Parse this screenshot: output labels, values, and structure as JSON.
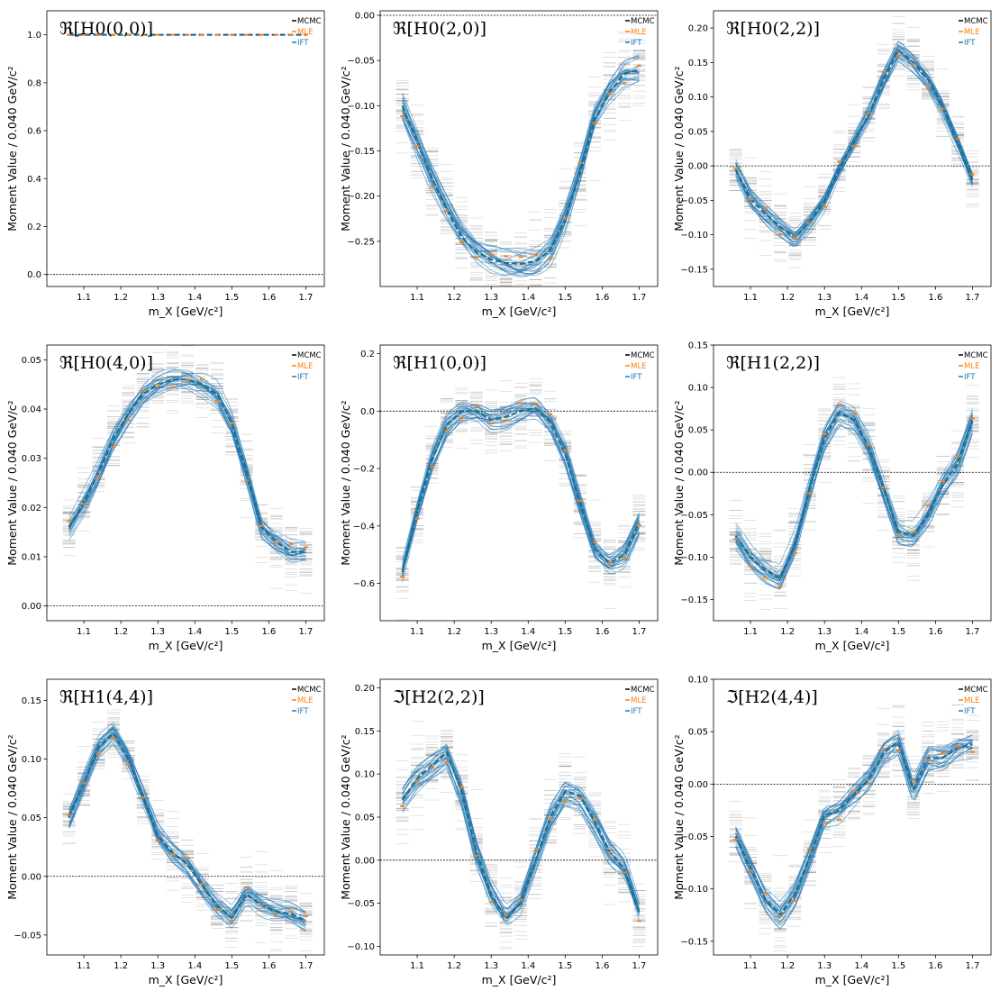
{
  "figure": {
    "legend": [
      {
        "label": "MCMC",
        "color": "#000000"
      },
      {
        "label": "MLE",
        "color": "#ff7f0e"
      },
      {
        "label": "IFT",
        "color": "#1f77b4"
      }
    ],
    "colors": {
      "mcmc": "#000000",
      "mle": "#ff7f0e",
      "ift": "#1f77b4",
      "ift_mean": "#1f6f8b",
      "zero_line": "#000000"
    },
    "xlabel": "m_X [GeV/c²]",
    "ylabel": "Moment Value / 0.040 GeV/c²"
  },
  "chart_data": [
    {
      "type": "line",
      "title": "ℜ[H0(0,0)]",
      "xlabel": "m_X [GeV/c²]",
      "ylabel": "Moment Value / 0.040 GeV/c²",
      "xlim": [
        1.0,
        1.75
      ],
      "ylim": [
        -0.05,
        1.1
      ],
      "xticks": [
        1.1,
        1.2,
        1.3,
        1.4,
        1.5,
        1.6,
        1.7
      ],
      "yticks": [
        0.0,
        0.2,
        0.4,
        0.6,
        0.8,
        1.0
      ],
      "ytick_labels": [
        "0.0",
        "0.2",
        "0.4",
        "0.6",
        "0.8",
        "1.0"
      ],
      "zero_line": true,
      "legend": "top-right",
      "x": [
        1.06,
        1.1,
        1.14,
        1.18,
        1.22,
        1.26,
        1.3,
        1.34,
        1.38,
        1.42,
        1.46,
        1.5,
        1.54,
        1.58,
        1.62,
        1.66,
        1.7
      ],
      "values": [
        1.0,
        1.0,
        1.0,
        1.0,
        1.0,
        1.0,
        1.0,
        1.0,
        1.0,
        1.0,
        1.0,
        1.0,
        1.0,
        1.0,
        1.0,
        1.0,
        1.0
      ],
      "spread": 0.0
    },
    {
      "type": "line",
      "title": "ℜ[H0(2,0)]",
      "xlabel": "m_X [GeV/c²]",
      "ylabel": "Moment Value / 0.040 GeV/c²",
      "xlim": [
        1.0,
        1.75
      ],
      "ylim": [
        -0.3,
        0.005
      ],
      "xticks": [
        1.1,
        1.2,
        1.3,
        1.4,
        1.5,
        1.6,
        1.7
      ],
      "yticks": [
        0.0,
        -0.05,
        -0.1,
        -0.15,
        -0.2,
        -0.25
      ],
      "ytick_labels": [
        "0.00",
        "−0.05",
        "−0.10",
        "−0.15",
        "−0.20",
        "−0.25"
      ],
      "zero_line": true,
      "legend": "top-right",
      "x": [
        1.06,
        1.1,
        1.14,
        1.18,
        1.22,
        1.26,
        1.3,
        1.34,
        1.38,
        1.42,
        1.46,
        1.5,
        1.54,
        1.58,
        1.62,
        1.66,
        1.7
      ],
      "values": [
        -0.1,
        -0.14,
        -0.18,
        -0.215,
        -0.245,
        -0.262,
        -0.27,
        -0.274,
        -0.275,
        -0.272,
        -0.26,
        -0.225,
        -0.175,
        -0.115,
        -0.085,
        -0.065,
        -0.06
      ],
      "spread": 0.02
    },
    {
      "type": "line",
      "title": "ℜ[H0(2,2)]",
      "xlabel": "m_X [GeV/c²]",
      "ylabel": "Moment Value / 0.040 GeV/c²",
      "xlim": [
        1.0,
        1.75
      ],
      "ylim": [
        -0.175,
        0.225
      ],
      "xticks": [
        1.1,
        1.2,
        1.3,
        1.4,
        1.5,
        1.6,
        1.7
      ],
      "yticks": [
        -0.15,
        -0.1,
        -0.05,
        0.0,
        0.05,
        0.1,
        0.15,
        0.2
      ],
      "ytick_labels": [
        "−0.15",
        "−0.10",
        "−0.05",
        "0.00",
        "0.05",
        "0.10",
        "0.15",
        "0.20"
      ],
      "zero_line": true,
      "legend": "top-right",
      "x": [
        1.06,
        1.1,
        1.14,
        1.18,
        1.22,
        1.26,
        1.3,
        1.34,
        1.38,
        1.42,
        1.46,
        1.5,
        1.54,
        1.58,
        1.62,
        1.66,
        1.7
      ],
      "values": [
        -0.005,
        -0.048,
        -0.07,
        -0.088,
        -0.105,
        -0.08,
        -0.05,
        -0.005,
        0.035,
        0.075,
        0.125,
        0.168,
        0.15,
        0.125,
        0.085,
        0.035,
        -0.02
      ],
      "spread": 0.02
    },
    {
      "type": "line",
      "title": "ℜ[H0(4,0)]",
      "xlabel": "m_X [GeV/c²]",
      "ylabel": "Moment Value / 0.040 GeV/c²",
      "xlim": [
        1.0,
        1.75
      ],
      "ylim": [
        -0.003,
        0.053
      ],
      "xticks": [
        1.1,
        1.2,
        1.3,
        1.4,
        1.5,
        1.6,
        1.7
      ],
      "yticks": [
        0.0,
        0.01,
        0.02,
        0.03,
        0.04,
        0.05
      ],
      "ytick_labels": [
        "0.00",
        "0.01",
        "0.02",
        "0.03",
        "0.04",
        "0.05"
      ],
      "zero_line": true,
      "legend": "top-right",
      "x": [
        1.06,
        1.1,
        1.14,
        1.18,
        1.22,
        1.26,
        1.3,
        1.34,
        1.38,
        1.42,
        1.46,
        1.5,
        1.54,
        1.58,
        1.62,
        1.66,
        1.7
      ],
      "values": [
        0.016,
        0.021,
        0.027,
        0.034,
        0.039,
        0.043,
        0.045,
        0.046,
        0.046,
        0.045,
        0.043,
        0.037,
        0.027,
        0.016,
        0.013,
        0.011,
        0.011
      ],
      "spread": 0.003
    },
    {
      "type": "line",
      "title": "ℜ[H1(0,0)]",
      "xlabel": "m_X [GeV/c²]",
      "ylabel": "Moment Value / 0.040 GeV/c²",
      "xlim": [
        1.0,
        1.75
      ],
      "ylim": [
        -0.73,
        0.23
      ],
      "xticks": [
        1.1,
        1.2,
        1.3,
        1.4,
        1.5,
        1.6,
        1.7
      ],
      "yticks": [
        0.2,
        0.0,
        -0.2,
        -0.4,
        -0.6
      ],
      "ytick_labels": [
        "0.2",
        "0.0",
        "−0.2",
        "−0.4",
        "−0.6"
      ],
      "zero_line": true,
      "legend": "top-right",
      "x": [
        1.06,
        1.1,
        1.14,
        1.18,
        1.22,
        1.26,
        1.3,
        1.34,
        1.38,
        1.42,
        1.46,
        1.5,
        1.54,
        1.58,
        1.62,
        1.66,
        1.7
      ],
      "values": [
        -0.56,
        -0.35,
        -0.17,
        -0.05,
        0.0,
        0.0,
        -0.03,
        -0.02,
        0.0,
        0.01,
        -0.04,
        -0.15,
        -0.32,
        -0.48,
        -0.53,
        -0.5,
        -0.39
      ],
      "spread": 0.05
    },
    {
      "type": "line",
      "title": "ℜ[H1(2,2)]",
      "xlabel": "m_X [GeV/c²]",
      "ylabel": "Moment Value / 0.040 GeV/c²",
      "xlim": [
        1.0,
        1.75
      ],
      "ylim": [
        -0.175,
        0.15
      ],
      "xticks": [
        1.1,
        1.2,
        1.3,
        1.4,
        1.5,
        1.6,
        1.7
      ],
      "yticks": [
        0.15,
        0.1,
        0.05,
        0.0,
        -0.05,
        -0.1,
        -0.15
      ],
      "ytick_labels": [
        "0.15",
        "0.10",
        "0.05",
        "0.00",
        "−0.05",
        "−0.10",
        "−0.15"
      ],
      "zero_line": true,
      "legend": "top-right",
      "x": [
        1.06,
        1.1,
        1.14,
        1.18,
        1.22,
        1.26,
        1.3,
        1.34,
        1.38,
        1.42,
        1.46,
        1.5,
        1.54,
        1.58,
        1.62,
        1.66,
        1.7
      ],
      "values": [
        -0.075,
        -0.1,
        -0.115,
        -0.125,
        -0.085,
        -0.02,
        0.04,
        0.07,
        0.062,
        0.03,
        -0.02,
        -0.07,
        -0.075,
        -0.05,
        -0.015,
        0.01,
        0.06
      ],
      "spread": 0.02
    },
    {
      "type": "line",
      "title": "ℜ[H1(4,4)]",
      "xlabel": "m_X [GeV/c²]",
      "ylabel": "Moment Value / 0.040 GeV/c²",
      "xlim": [
        1.0,
        1.75
      ],
      "ylim": [
        -0.067,
        0.168
      ],
      "xticks": [
        1.1,
        1.2,
        1.3,
        1.4,
        1.5,
        1.6,
        1.7
      ],
      "yticks": [
        0.15,
        0.1,
        0.05,
        0.0,
        -0.05
      ],
      "ytick_labels": [
        "0.15",
        "0.10",
        "0.05",
        "0.00",
        "−0.05"
      ],
      "zero_line": true,
      "legend": "top-right",
      "x": [
        1.06,
        1.1,
        1.14,
        1.18,
        1.22,
        1.26,
        1.3,
        1.34,
        1.38,
        1.42,
        1.46,
        1.5,
        1.54,
        1.58,
        1.62,
        1.66,
        1.7
      ],
      "values": [
        0.05,
        0.08,
        0.11,
        0.122,
        0.1,
        0.068,
        0.035,
        0.02,
        0.01,
        -0.008,
        -0.025,
        -0.035,
        -0.015,
        -0.025,
        -0.03,
        -0.032,
        -0.038
      ],
      "spread": 0.012
    },
    {
      "type": "line",
      "title": "ℑ[H2(2,2)]",
      "xlabel": "m_X [GeV/c²]",
      "ylabel": "Moment Value / 0.040 GeV/c²",
      "xlim": [
        1.0,
        1.75
      ],
      "ylim": [
        -0.11,
        0.21
      ],
      "xticks": [
        1.1,
        1.2,
        1.3,
        1.4,
        1.5,
        1.6,
        1.7
      ],
      "yticks": [
        0.2,
        0.15,
        0.1,
        0.05,
        0.0,
        -0.05,
        -0.1
      ],
      "ytick_labels": [
        "0.20",
        "0.15",
        "0.10",
        "0.05",
        "0.00",
        "−0.05",
        "−0.10"
      ],
      "zero_line": true,
      "legend": "top-right",
      "x": [
        1.06,
        1.1,
        1.14,
        1.18,
        1.22,
        1.26,
        1.3,
        1.34,
        1.38,
        1.42,
        1.46,
        1.5,
        1.54,
        1.58,
        1.62,
        1.66,
        1.7
      ],
      "values": [
        0.07,
        0.095,
        0.11,
        0.125,
        0.08,
        0.01,
        -0.04,
        -0.068,
        -0.05,
        0.0,
        0.05,
        0.08,
        0.075,
        0.045,
        0.01,
        -0.01,
        -0.06
      ],
      "spread": 0.02
    },
    {
      "type": "line",
      "title": "ℑ[H2(4,4)]",
      "xlabel": "m_X [GeV/c²]",
      "ylabel": "Moment Value / 0.040 GeV/c²",
      "xlim": [
        1.0,
        1.75
      ],
      "ylim": [
        -0.163,
        0.1
      ],
      "xticks": [
        1.1,
        1.2,
        1.3,
        1.4,
        1.5,
        1.6,
        1.7
      ],
      "yticks": [
        0.1,
        0.05,
        0.0,
        -0.05,
        -0.1,
        -0.15
      ],
      "ytick_labels": [
        "0.10",
        "0.05",
        "0.00",
        "−0.05",
        "−0.10",
        "−0.15"
      ],
      "zero_line": true,
      "legend": "top-right",
      "x": [
        1.06,
        1.1,
        1.14,
        1.18,
        1.22,
        1.26,
        1.3,
        1.34,
        1.38,
        1.42,
        1.46,
        1.5,
        1.54,
        1.58,
        1.62,
        1.66,
        1.7
      ],
      "values": [
        -0.05,
        -0.08,
        -0.11,
        -0.125,
        -0.105,
        -0.07,
        -0.03,
        -0.025,
        -0.01,
        0.005,
        0.03,
        0.04,
        -0.005,
        0.025,
        0.025,
        0.035,
        0.038
      ],
      "spread": 0.015
    }
  ]
}
